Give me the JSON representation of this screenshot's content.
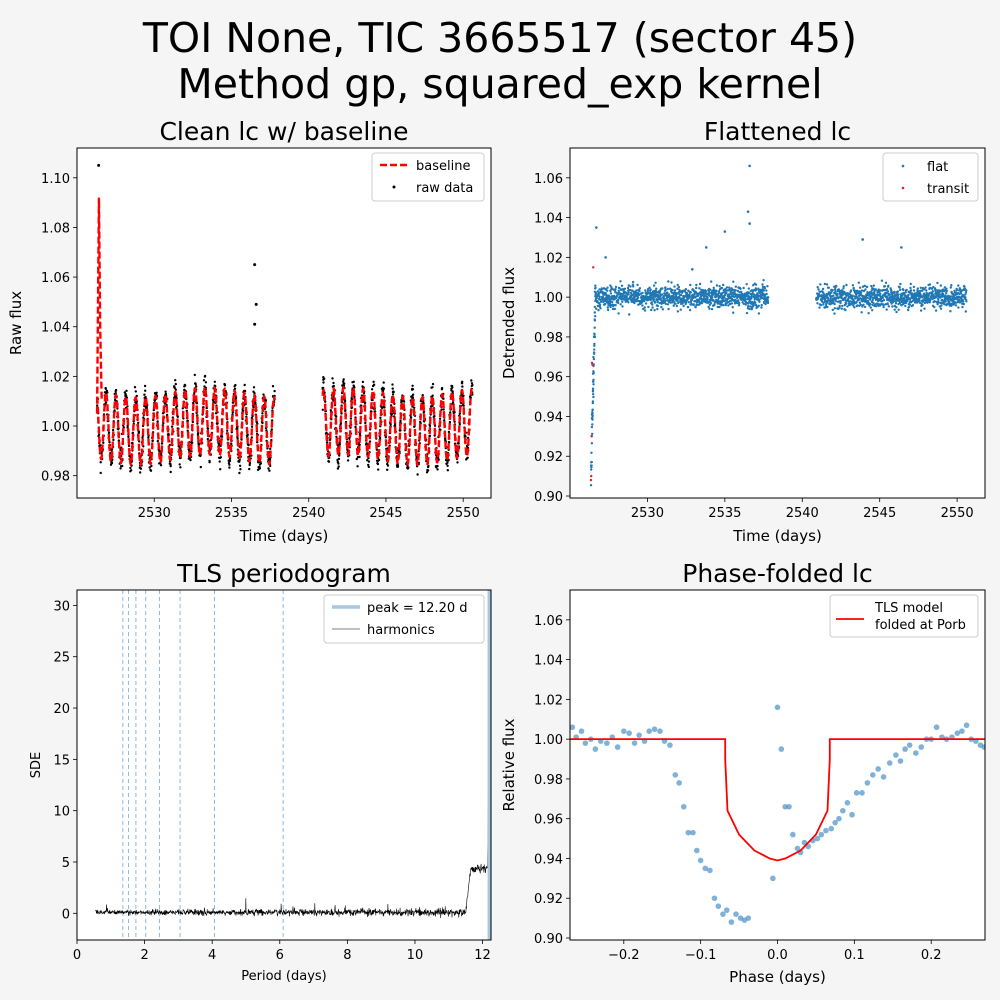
{
  "figure": {
    "title_line1": "TOI None, TIC 3665517 (sector 45)",
    "title_line2": "Method gp, squared_exp kernel"
  },
  "chart_data": [
    {
      "type": "scatter",
      "title": "Clean lc w/ baseline",
      "xlabel": "Time (days)",
      "ylabel": "Raw flux",
      "xlim": [
        2525.0,
        2551.8
      ],
      "ylim": [
        0.971,
        1.112
      ],
      "xticks": [
        2530,
        2535,
        2540,
        2545,
        2550
      ],
      "yticks": [
        0.98,
        1.0,
        1.02,
        1.04,
        1.06,
        1.08,
        1.1
      ],
      "ytick_labels": [
        "0.98",
        "1.00",
        "1.02",
        "1.04",
        "1.06",
        "1.08",
        "1.10"
      ],
      "legend": [
        "baseline",
        "raw data"
      ],
      "legend_loc": "upper right",
      "segments": [
        [
          2526.3,
          2537.8
        ],
        [
          2540.9,
          2550.6
        ]
      ],
      "oscillation": {
        "period_days": 0.64,
        "amplitude": 0.0135,
        "center": 1.0
      },
      "outliers": [
        {
          "x": 2526.4,
          "y": 1.105
        },
        {
          "x": 2536.5,
          "y": 1.065
        },
        {
          "x": 2536.6,
          "y": 1.049
        },
        {
          "x": 2536.5,
          "y": 1.041
        }
      ],
      "baseline_spike": {
        "x": [
          2526.3,
          2526.42,
          2526.5,
          2526.6
        ],
        "y": [
          1.005,
          1.092,
          1.04,
          1.01
        ]
      }
    },
    {
      "type": "scatter",
      "title": "Flattened lc",
      "xlabel": "Time (days)",
      "ylabel": "Detrended flux",
      "xlim": [
        2525.0,
        2551.8
      ],
      "ylim": [
        0.899,
        1.075
      ],
      "xticks": [
        2530,
        2535,
        2540,
        2545,
        2550
      ],
      "yticks": [
        0.9,
        0.92,
        0.94,
        0.96,
        0.98,
        1.0,
        1.02,
        1.04,
        1.06
      ],
      "ytick_labels": [
        "0.90",
        "0.92",
        "0.94",
        "0.96",
        "0.98",
        "1.00",
        "1.02",
        "1.04",
        "1.06"
      ],
      "legend": [
        "flat",
        "transit"
      ],
      "legend_loc": "upper right",
      "scatter_sigma": 0.005,
      "outliers": [
        {
          "x": 2536.6,
          "y": 1.066
        },
        {
          "x": 2536.5,
          "y": 1.043
        },
        {
          "x": 2536.6,
          "y": 1.037
        },
        {
          "x": 2533.8,
          "y": 1.025
        },
        {
          "x": 2535.0,
          "y": 1.033
        },
        {
          "x": 2543.9,
          "y": 1.029
        },
        {
          "x": 2546.4,
          "y": 1.025
        },
        {
          "x": 2526.7,
          "y": 1.035
        },
        {
          "x": 2532.9,
          "y": 1.014
        },
        {
          "x": 2527.3,
          "y": 1.02
        }
      ],
      "transit_points": [
        {
          "x": 2526.35,
          "y": 0.908
        },
        {
          "x": 2526.37,
          "y": 0.91
        },
        {
          "x": 2526.4,
          "y": 0.93
        },
        {
          "x": 2526.42,
          "y": 0.967
        },
        {
          "x": 2526.45,
          "y": 0.966
        },
        {
          "x": 2526.5,
          "y": 1.015
        }
      ]
    },
    {
      "type": "line",
      "title": "TLS periodogram",
      "xlabel": "Period (days)",
      "ylabel": "SDE",
      "xlim": [
        0.0,
        12.25
      ],
      "ylim": [
        -2.6,
        31.5
      ],
      "xticks": [
        0,
        2,
        4,
        6,
        8,
        10,
        12
      ],
      "yticks": [
        0,
        5,
        10,
        15,
        20,
        25,
        30
      ],
      "legend": [
        "peak = 12.20 d",
        "harmonics"
      ],
      "legend_loc": "upper right",
      "peak_period": 12.2,
      "harmonic_lines": [
        6.1,
        4.067,
        3.05,
        2.44,
        2.033,
        1.743,
        1.525,
        1.356
      ],
      "series": {
        "x_range": [
          0.55,
          12.25
        ],
        "baseline_sde": 0.1,
        "rise_start": 11.5,
        "plateau_sde": 4.3,
        "peak_sde": 30
      }
    },
    {
      "type": "scatter",
      "title": "Phase-folded lc",
      "xlabel": "Phase (days)",
      "ylabel": "Relative flux",
      "xlim": [
        -0.27,
        0.27
      ],
      "ylim": [
        0.899,
        1.075
      ],
      "xticks": [
        -0.2,
        -0.1,
        0.0,
        0.1,
        0.2
      ],
      "xtick_labels": [
        "−0.2",
        "−0.1",
        "0.0",
        "0.1",
        "0.2"
      ],
      "yticks": [
        0.9,
        0.92,
        0.94,
        0.96,
        0.98,
        1.0,
        1.02,
        1.04,
        1.06
      ],
      "ytick_labels": [
        "0.90",
        "0.92",
        "0.94",
        "0.96",
        "0.98",
        "1.00",
        "1.02",
        "1.04",
        "1.06"
      ],
      "legend": [
        "TLS model\nfolded at Porb"
      ],
      "legend_loc": "upper right",
      "model": {
        "x": [
          -0.27,
          -0.068,
          -0.068,
          -0.065,
          -0.05,
          -0.03,
          -0.01,
          0.0,
          0.01,
          0.03,
          0.05,
          0.065,
          0.068,
          0.068,
          0.27
        ],
        "y": [
          1.0,
          1.0,
          0.99,
          0.964,
          0.952,
          0.944,
          0.94,
          0.939,
          0.94,
          0.944,
          0.952,
          0.964,
          0.99,
          1.0,
          1.0
        ]
      },
      "points": [
        {
          "x": -0.267,
          "y": 1.006
        },
        {
          "x": -0.262,
          "y": 1.001
        },
        {
          "x": -0.255,
          "y": 1.004
        },
        {
          "x": -0.25,
          "y": 0.998
        },
        {
          "x": -0.243,
          "y": 1.0
        },
        {
          "x": -0.237,
          "y": 0.995
        },
        {
          "x": -0.23,
          "y": 0.999
        },
        {
          "x": -0.222,
          "y": 0.998
        },
        {
          "x": -0.215,
          "y": 1.001
        },
        {
          "x": -0.208,
          "y": 0.996
        },
        {
          "x": -0.2,
          "y": 1.004
        },
        {
          "x": -0.193,
          "y": 1.003
        },
        {
          "x": -0.186,
          "y": 0.998
        },
        {
          "x": -0.18,
          "y": 1.002
        },
        {
          "x": -0.173,
          "y": 0.999
        },
        {
          "x": -0.167,
          "y": 1.004
        },
        {
          "x": -0.16,
          "y": 1.005
        },
        {
          "x": -0.153,
          "y": 1.004
        },
        {
          "x": -0.147,
          "y": 0.999
        },
        {
          "x": -0.14,
          "y": 0.997
        },
        {
          "x": -0.133,
          "y": 0.982
        },
        {
          "x": -0.128,
          "y": 0.978
        },
        {
          "x": -0.122,
          "y": 0.966
        },
        {
          "x": -0.116,
          "y": 0.953
        },
        {
          "x": -0.11,
          "y": 0.953
        },
        {
          "x": -0.105,
          "y": 0.944
        },
        {
          "x": -0.1,
          "y": 0.939
        },
        {
          "x": -0.094,
          "y": 0.935
        },
        {
          "x": -0.088,
          "y": 0.934
        },
        {
          "x": -0.082,
          "y": 0.92
        },
        {
          "x": -0.077,
          "y": 0.916
        },
        {
          "x": -0.071,
          "y": 0.912
        },
        {
          "x": -0.066,
          "y": 0.914
        },
        {
          "x": -0.06,
          "y": 0.908
        },
        {
          "x": -0.054,
          "y": 0.912
        },
        {
          "x": -0.048,
          "y": 0.91
        },
        {
          "x": -0.043,
          "y": 0.909
        },
        {
          "x": -0.038,
          "y": 0.91
        },
        {
          "x": -0.006,
          "y": 0.93
        },
        {
          "x": 0.0,
          "y": 1.016
        },
        {
          "x": 0.005,
          "y": 0.995
        },
        {
          "x": 0.01,
          "y": 0.966
        },
        {
          "x": 0.015,
          "y": 0.966
        },
        {
          "x": 0.02,
          "y": 0.952
        },
        {
          "x": 0.026,
          "y": 0.945
        },
        {
          "x": 0.03,
          "y": 0.943
        },
        {
          "x": 0.035,
          "y": 0.948
        },
        {
          "x": 0.04,
          "y": 0.946
        },
        {
          "x": 0.046,
          "y": 0.949
        },
        {
          "x": 0.052,
          "y": 0.95
        },
        {
          "x": 0.057,
          "y": 0.952
        },
        {
          "x": 0.063,
          "y": 0.954
        },
        {
          "x": 0.07,
          "y": 0.955
        },
        {
          "x": 0.075,
          "y": 0.958
        },
        {
          "x": 0.08,
          "y": 0.96
        },
        {
          "x": 0.085,
          "y": 0.964
        },
        {
          "x": 0.091,
          "y": 0.968
        },
        {
          "x": 0.097,
          "y": 0.962
        },
        {
          "x": 0.103,
          "y": 0.973
        },
        {
          "x": 0.11,
          "y": 0.973
        },
        {
          "x": 0.117,
          "y": 0.978
        },
        {
          "x": 0.124,
          "y": 0.982
        },
        {
          "x": 0.131,
          "y": 0.985
        },
        {
          "x": 0.138,
          "y": 0.981
        },
        {
          "x": 0.146,
          "y": 0.988
        },
        {
          "x": 0.154,
          "y": 0.992
        },
        {
          "x": 0.16,
          "y": 0.989
        },
        {
          "x": 0.166,
          "y": 0.995
        },
        {
          "x": 0.172,
          "y": 0.997
        },
        {
          "x": 0.18,
          "y": 0.993
        },
        {
          "x": 0.187,
          "y": 0.996
        },
        {
          "x": 0.194,
          "y": 1.0
        },
        {
          "x": 0.2,
          "y": 1.0
        },
        {
          "x": 0.207,
          "y": 1.006
        },
        {
          "x": 0.214,
          "y": 1.001
        },
        {
          "x": 0.22,
          "y": 1.0
        },
        {
          "x": 0.227,
          "y": 1.001
        },
        {
          "x": 0.234,
          "y": 1.003
        },
        {
          "x": 0.24,
          "y": 1.004
        },
        {
          "x": 0.246,
          "y": 1.007
        },
        {
          "x": 0.252,
          "y": 1.0
        },
        {
          "x": 0.258,
          "y": 0.999
        },
        {
          "x": 0.264,
          "y": 0.997
        },
        {
          "x": 0.269,
          "y": 0.996
        }
      ]
    }
  ],
  "colors": {
    "background": "#f5f5f5",
    "axes": "#ffffff",
    "baseline": "#ff0000",
    "raw": "#000000",
    "flat": "#1f77b4",
    "transit": "#d62728",
    "peak": "#a6c8e0",
    "harmonic": "#6fa8d6",
    "model": "#ff0000",
    "folded": "#4a90c8"
  }
}
